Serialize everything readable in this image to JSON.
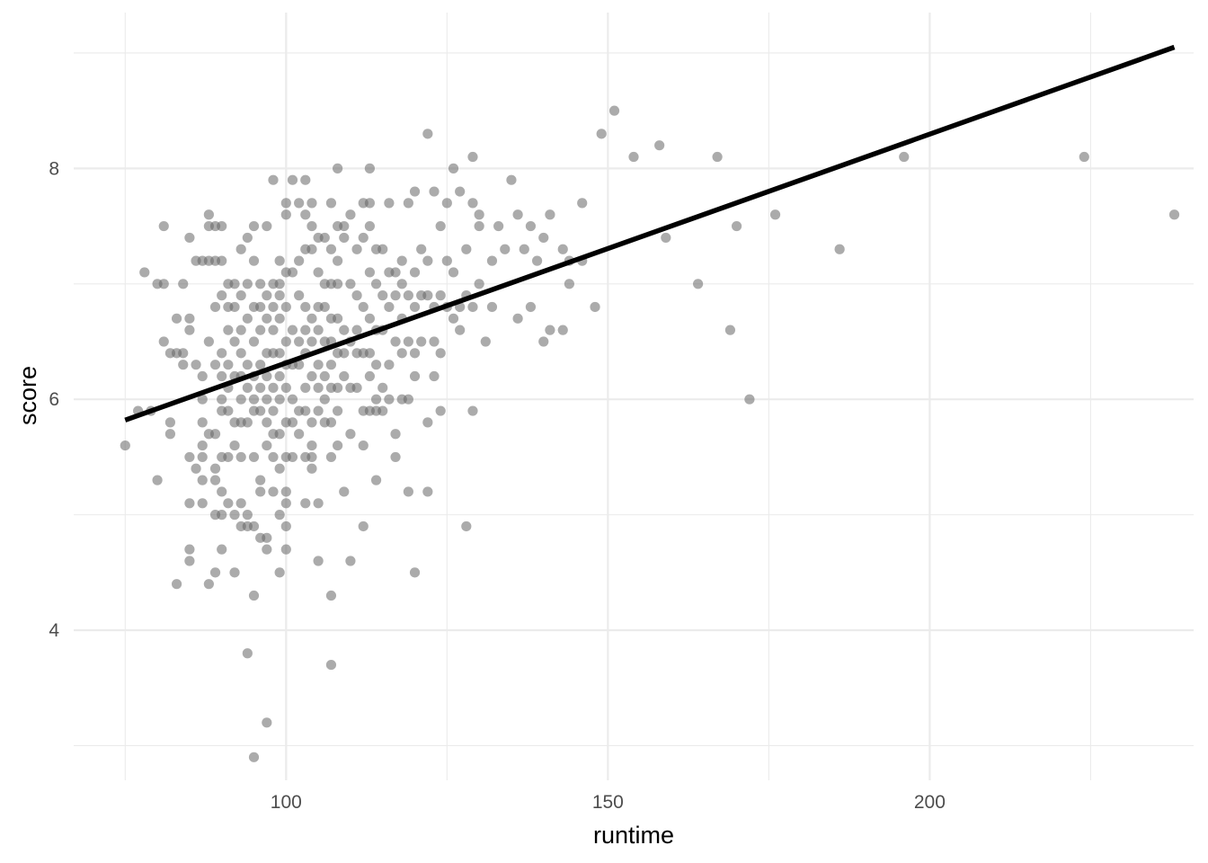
{
  "chart_data": {
    "type": "scatter",
    "xlabel": "runtime",
    "ylabel": "score",
    "xlim": [
      67,
      241
    ],
    "ylim": [
      2.7,
      9.35
    ],
    "x_ticks": [
      100,
      150,
      200
    ],
    "x_minor_ticks": [
      75,
      125,
      175,
      225
    ],
    "y_ticks": [
      4,
      6,
      8
    ],
    "y_minor_ticks": [
      3,
      5,
      7,
      9
    ],
    "grid": true,
    "legend": "none",
    "point_color": "#666666",
    "line_color": "#000000",
    "trend_line": {
      "x": [
        75,
        238
      ],
      "y": [
        5.82,
        9.05
      ]
    },
    "points": [
      [
        75,
        5.6
      ],
      [
        77,
        5.9
      ],
      [
        78,
        7.1
      ],
      [
        79,
        5.9
      ],
      [
        80,
        7.0
      ],
      [
        80,
        5.3
      ],
      [
        81,
        7.5
      ],
      [
        81,
        7.0
      ],
      [
        81,
        6.5
      ],
      [
        82,
        5.8
      ],
      [
        82,
        5.7
      ],
      [
        82,
        6.4
      ],
      [
        83,
        6.7
      ],
      [
        83,
        6.4
      ],
      [
        83,
        4.4
      ],
      [
        84,
        7.0
      ],
      [
        84,
        6.4
      ],
      [
        84,
        6.3
      ],
      [
        85,
        6.7
      ],
      [
        85,
        6.6
      ],
      [
        85,
        7.4
      ],
      [
        85,
        5.5
      ],
      [
        85,
        5.1
      ],
      [
        85,
        4.7
      ],
      [
        85,
        4.6
      ],
      [
        86,
        7.2
      ],
      [
        86,
        6.3
      ],
      [
        86,
        5.4
      ],
      [
        87,
        7.2
      ],
      [
        87,
        6.2
      ],
      [
        87,
        6.0
      ],
      [
        87,
        5.8
      ],
      [
        87,
        5.6
      ],
      [
        87,
        5.5
      ],
      [
        87,
        5.3
      ],
      [
        87,
        5.1
      ],
      [
        88,
        7.6
      ],
      [
        88,
        7.5
      ],
      [
        88,
        7.2
      ],
      [
        88,
        6.5
      ],
      [
        88,
        5.7
      ],
      [
        88,
        4.4
      ],
      [
        89,
        7.5
      ],
      [
        89,
        7.2
      ],
      [
        89,
        6.8
      ],
      [
        89,
        6.3
      ],
      [
        89,
        5.7
      ],
      [
        89,
        5.4
      ],
      [
        89,
        5.3
      ],
      [
        89,
        5.0
      ],
      [
        89,
        4.5
      ],
      [
        90,
        7.5
      ],
      [
        90,
        7.2
      ],
      [
        90,
        6.9
      ],
      [
        90,
        6.4
      ],
      [
        90,
        6.2
      ],
      [
        90,
        6.0
      ],
      [
        90,
        5.9
      ],
      [
        90,
        5.5
      ],
      [
        90,
        5.2
      ],
      [
        90,
        5.0
      ],
      [
        90,
        4.7
      ],
      [
        91,
        7.0
      ],
      [
        91,
        6.8
      ],
      [
        91,
        6.6
      ],
      [
        91,
        6.3
      ],
      [
        91,
        6.1
      ],
      [
        91,
        5.9
      ],
      [
        91,
        5.5
      ],
      [
        91,
        5.1
      ],
      [
        92,
        7.0
      ],
      [
        92,
        6.8
      ],
      [
        92,
        6.5
      ],
      [
        92,
        6.2
      ],
      [
        92,
        5.8
      ],
      [
        92,
        5.6
      ],
      [
        92,
        5.0
      ],
      [
        92,
        4.5
      ],
      [
        93,
        7.3
      ],
      [
        93,
        6.9
      ],
      [
        93,
        6.6
      ],
      [
        93,
        6.4
      ],
      [
        93,
        6.2
      ],
      [
        93,
        6.0
      ],
      [
        93,
        5.8
      ],
      [
        93,
        5.5
      ],
      [
        93,
        5.1
      ],
      [
        93,
        4.9
      ],
      [
        94,
        7.4
      ],
      [
        94,
        7.0
      ],
      [
        94,
        6.7
      ],
      [
        94,
        6.3
      ],
      [
        94,
        6.1
      ],
      [
        94,
        5.8
      ],
      [
        94,
        5.0
      ],
      [
        94,
        4.9
      ],
      [
        94,
        3.8
      ],
      [
        95,
        7.5
      ],
      [
        95,
        7.2
      ],
      [
        95,
        6.8
      ],
      [
        95,
        6.5
      ],
      [
        95,
        6.2
      ],
      [
        95,
        6.0
      ],
      [
        95,
        5.9
      ],
      [
        95,
        5.5
      ],
      [
        95,
        4.9
      ],
      [
        95,
        4.3
      ],
      [
        95,
        2.9
      ],
      [
        96,
        7.0
      ],
      [
        96,
        6.8
      ],
      [
        96,
        6.6
      ],
      [
        96,
        6.3
      ],
      [
        96,
        6.1
      ],
      [
        96,
        5.9
      ],
      [
        96,
        5.3
      ],
      [
        96,
        5.2
      ],
      [
        96,
        4.8
      ],
      [
        97,
        7.5
      ],
      [
        97,
        6.9
      ],
      [
        97,
        6.7
      ],
      [
        97,
        6.4
      ],
      [
        97,
        6.2
      ],
      [
        97,
        6.0
      ],
      [
        97,
        5.8
      ],
      [
        97,
        5.6
      ],
      [
        97,
        4.8
      ],
      [
        97,
        4.7
      ],
      [
        97,
        3.2
      ],
      [
        98,
        7.9
      ],
      [
        98,
        7.0
      ],
      [
        98,
        6.8
      ],
      [
        98,
        6.6
      ],
      [
        98,
        6.4
      ],
      [
        98,
        6.1
      ],
      [
        98,
        5.9
      ],
      [
        98,
        5.7
      ],
      [
        98,
        5.5
      ],
      [
        98,
        5.2
      ],
      [
        99,
        7.2
      ],
      [
        99,
        7.0
      ],
      [
        99,
        6.9
      ],
      [
        99,
        6.7
      ],
      [
        99,
        6.4
      ],
      [
        99,
        6.2
      ],
      [
        99,
        6.0
      ],
      [
        99,
        5.7
      ],
      [
        99,
        5.4
      ],
      [
        99,
        5.0
      ],
      [
        99,
        4.5
      ],
      [
        100,
        7.7
      ],
      [
        100,
        7.6
      ],
      [
        100,
        7.1
      ],
      [
        100,
        6.8
      ],
      [
        100,
        6.5
      ],
      [
        100,
        6.3
      ],
      [
        100,
        6.1
      ],
      [
        100,
        5.8
      ],
      [
        100,
        5.5
      ],
      [
        100,
        5.2
      ],
      [
        100,
        5.1
      ],
      [
        100,
        4.9
      ],
      [
        100,
        4.7
      ],
      [
        101,
        7.9
      ],
      [
        101,
        7.1
      ],
      [
        101,
        6.6
      ],
      [
        101,
        6.3
      ],
      [
        101,
        6.0
      ],
      [
        101,
        5.8
      ],
      [
        101,
        5.5
      ],
      [
        102,
        7.7
      ],
      [
        102,
        7.2
      ],
      [
        102,
        6.9
      ],
      [
        102,
        6.5
      ],
      [
        102,
        6.3
      ],
      [
        102,
        5.9
      ],
      [
        102,
        5.7
      ],
      [
        103,
        7.9
      ],
      [
        103,
        7.6
      ],
      [
        103,
        7.3
      ],
      [
        103,
        6.8
      ],
      [
        103,
        6.6
      ],
      [
        103,
        6.4
      ],
      [
        103,
        6.1
      ],
      [
        103,
        5.9
      ],
      [
        103,
        5.5
      ],
      [
        103,
        5.1
      ],
      [
        104,
        7.7
      ],
      [
        104,
        7.5
      ],
      [
        104,
        7.3
      ],
      [
        104,
        6.7
      ],
      [
        104,
        6.5
      ],
      [
        104,
        6.2
      ],
      [
        104,
        5.8
      ],
      [
        104,
        5.6
      ],
      [
        104,
        5.5
      ],
      [
        104,
        5.4
      ],
      [
        105,
        7.4
      ],
      [
        105,
        7.1
      ],
      [
        105,
        6.8
      ],
      [
        105,
        6.6
      ],
      [
        105,
        6.3
      ],
      [
        105,
        6.1
      ],
      [
        105,
        5.9
      ],
      [
        105,
        5.1
      ],
      [
        105,
        4.6
      ],
      [
        106,
        7.4
      ],
      [
        106,
        7.0
      ],
      [
        106,
        6.8
      ],
      [
        106,
        6.5
      ],
      [
        106,
        6.2
      ],
      [
        106,
        6.0
      ],
      [
        106,
        5.8
      ],
      [
        107,
        7.7
      ],
      [
        107,
        7.3
      ],
      [
        107,
        7.0
      ],
      [
        107,
        6.7
      ],
      [
        107,
        6.5
      ],
      [
        107,
        6.3
      ],
      [
        107,
        6.1
      ],
      [
        107,
        5.8
      ],
      [
        107,
        5.5
      ],
      [
        107,
        4.3
      ],
      [
        107,
        3.7
      ],
      [
        108,
        8.0
      ],
      [
        108,
        7.5
      ],
      [
        108,
        7.2
      ],
      [
        108,
        7.0
      ],
      [
        108,
        6.7
      ],
      [
        108,
        6.4
      ],
      [
        108,
        6.1
      ],
      [
        108,
        5.9
      ],
      [
        108,
        5.6
      ],
      [
        109,
        7.5
      ],
      [
        109,
        7.4
      ],
      [
        109,
        6.6
      ],
      [
        109,
        6.4
      ],
      [
        109,
        6.2
      ],
      [
        109,
        5.2
      ],
      [
        110,
        7.6
      ],
      [
        110,
        7.0
      ],
      [
        110,
        6.5
      ],
      [
        110,
        6.1
      ],
      [
        110,
        5.7
      ],
      [
        110,
        4.6
      ],
      [
        111,
        7.3
      ],
      [
        111,
        6.9
      ],
      [
        111,
        6.6
      ],
      [
        111,
        6.4
      ],
      [
        111,
        6.1
      ],
      [
        112,
        7.7
      ],
      [
        112,
        7.4
      ],
      [
        112,
        6.8
      ],
      [
        112,
        6.4
      ],
      [
        112,
        5.9
      ],
      [
        112,
        5.6
      ],
      [
        112,
        4.9
      ],
      [
        113,
        8.0
      ],
      [
        113,
        7.7
      ],
      [
        113,
        7.5
      ],
      [
        113,
        7.1
      ],
      [
        113,
        6.7
      ],
      [
        113,
        6.4
      ],
      [
        113,
        6.2
      ],
      [
        113,
        5.9
      ],
      [
        114,
        7.3
      ],
      [
        114,
        7.0
      ],
      [
        114,
        6.6
      ],
      [
        114,
        6.3
      ],
      [
        114,
        6.0
      ],
      [
        114,
        5.9
      ],
      [
        114,
        5.3
      ],
      [
        115,
        7.3
      ],
      [
        115,
        6.9
      ],
      [
        115,
        6.6
      ],
      [
        115,
        6.1
      ],
      [
        115,
        5.9
      ],
      [
        116,
        7.7
      ],
      [
        116,
        7.1
      ],
      [
        116,
        6.8
      ],
      [
        116,
        6.3
      ],
      [
        116,
        6.0
      ],
      [
        117,
        7.1
      ],
      [
        117,
        6.9
      ],
      [
        117,
        6.5
      ],
      [
        117,
        5.7
      ],
      [
        117,
        5.5
      ],
      [
        118,
        7.2
      ],
      [
        118,
        7.0
      ],
      [
        118,
        6.7
      ],
      [
        118,
        6.4
      ],
      [
        118,
        6.0
      ],
      [
        119,
        7.7
      ],
      [
        119,
        6.9
      ],
      [
        119,
        6.5
      ],
      [
        119,
        6.0
      ],
      [
        119,
        5.2
      ],
      [
        120,
        7.8
      ],
      [
        120,
        7.1
      ],
      [
        120,
        6.8
      ],
      [
        120,
        6.4
      ],
      [
        120,
        6.2
      ],
      [
        120,
        4.5
      ],
      [
        121,
        7.3
      ],
      [
        121,
        6.9
      ],
      [
        121,
        6.5
      ],
      [
        122,
        8.3
      ],
      [
        122,
        7.2
      ],
      [
        122,
        6.9
      ],
      [
        122,
        5.8
      ],
      [
        122,
        5.2
      ],
      [
        123,
        7.8
      ],
      [
        123,
        6.8
      ],
      [
        123,
        6.5
      ],
      [
        123,
        6.2
      ],
      [
        124,
        7.5
      ],
      [
        124,
        6.9
      ],
      [
        124,
        6.4
      ],
      [
        124,
        5.9
      ],
      [
        125,
        7.7
      ],
      [
        125,
        7.2
      ],
      [
        125,
        6.8
      ],
      [
        126,
        8.0
      ],
      [
        126,
        7.1
      ],
      [
        126,
        6.7
      ],
      [
        127,
        7.8
      ],
      [
        127,
        6.8
      ],
      [
        127,
        6.6
      ],
      [
        128,
        7.3
      ],
      [
        128,
        6.9
      ],
      [
        128,
        4.9
      ],
      [
        129,
        8.1
      ],
      [
        129,
        7.7
      ],
      [
        129,
        6.8
      ],
      [
        129,
        5.9
      ],
      [
        130,
        7.6
      ],
      [
        130,
        7.5
      ],
      [
        130,
        7.0
      ],
      [
        131,
        6.5
      ],
      [
        132,
        7.2
      ],
      [
        132,
        6.8
      ],
      [
        133,
        7.5
      ],
      [
        134,
        7.3
      ],
      [
        135,
        7.9
      ],
      [
        136,
        7.6
      ],
      [
        136,
        6.7
      ],
      [
        137,
        7.3
      ],
      [
        138,
        7.5
      ],
      [
        138,
        6.8
      ],
      [
        139,
        7.2
      ],
      [
        140,
        7.4
      ],
      [
        140,
        6.5
      ],
      [
        141,
        7.6
      ],
      [
        141,
        6.6
      ],
      [
        143,
        7.3
      ],
      [
        143,
        6.6
      ],
      [
        144,
        7.2
      ],
      [
        144,
        7.0
      ],
      [
        146,
        7.7
      ],
      [
        146,
        7.2
      ],
      [
        148,
        6.8
      ],
      [
        149,
        8.3
      ],
      [
        151,
        8.5
      ],
      [
        154,
        8.1
      ],
      [
        158,
        8.2
      ],
      [
        159,
        7.4
      ],
      [
        164,
        7.0
      ],
      [
        167,
        8.1
      ],
      [
        169,
        6.6
      ],
      [
        170,
        7.5
      ],
      [
        172,
        6.0
      ],
      [
        176,
        7.6
      ],
      [
        186,
        7.3
      ],
      [
        196,
        8.1
      ],
      [
        224,
        8.1
      ],
      [
        238,
        7.6
      ]
    ]
  }
}
